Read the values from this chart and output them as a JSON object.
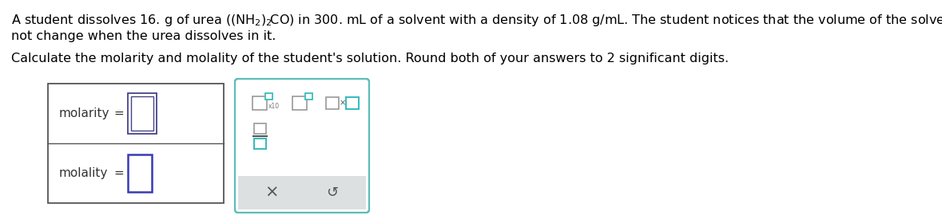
{
  "line1": "A student dissolves 16. g of urea $\\left(\\left(\\mathrm{NH_2}\\right)_2\\!\\mathrm{CO}\\right)$ in 300. mL of a solvent with a density of 1.08 g/mL. The student notices that the volume of the solvent does",
  "line2": "not change when the urea dissolves in it.",
  "line3": "Calculate the molarity and molality of the student's solution. Round both of your answers to 2 significant digits.",
  "label1": "molarity",
  "label2": "molality",
  "eq": "=",
  "bg_color": "#ffffff",
  "box_border_color": "#555555",
  "input_border_dark": "#2a2a7a",
  "input_border_blue": "#3a3ab0",
  "panel_border_color": "#5bbcbc",
  "gray_bg": "#dde0e0",
  "font_size_text": 11.5,
  "font_size_label": 11,
  "teal": "#3bbcbc",
  "gray_btn": "#999999",
  "text_color": "#333333",
  "btn_label_color": "#777777"
}
